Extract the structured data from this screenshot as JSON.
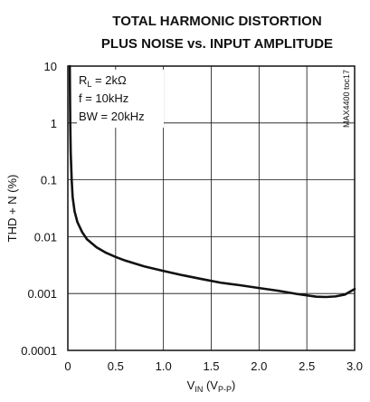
{
  "chart_data": {
    "type": "line",
    "title_line1": "TOTAL HARMONIC DISTORTION",
    "title_line2": "PLUS NOISE vs. INPUT AMPLITUDE",
    "ylabel": "THD + N (%)",
    "xlabel": {
      "base": "V",
      "sub": "IN",
      "rest_open": " (V",
      "rest_sub": "P-P",
      "rest_close": ")"
    },
    "xlim": [
      0,
      3.0
    ],
    "ylim": [
      0.0001,
      10
    ],
    "yscale": "log",
    "grid": true,
    "x_ticks": [
      "0",
      "0.5",
      "1.0",
      "1.5",
      "2.0",
      "2.5",
      "3.0"
    ],
    "x_tick_values": [
      0,
      0.5,
      1.0,
      1.5,
      2.0,
      2.5,
      3.0
    ],
    "y_ticks": [
      "10",
      "1",
      "0.1",
      "0.01",
      "0.001",
      "0.0001"
    ],
    "y_tick_values": [
      10,
      1,
      0.1,
      0.01,
      0.001,
      0.0001
    ],
    "annotation": {
      "rl_base": "R",
      "rl_sub": "L",
      "rl_value": " = 2kΩ",
      "freq": "f = 10kHz",
      "bw": "BW = 20kHz"
    },
    "part_number": "MAX4400 toc17",
    "series": [
      {
        "color": "#111111",
        "x": [
          0.02,
          0.025,
          0.03,
          0.04,
          0.05,
          0.07,
          0.1,
          0.15,
          0.2,
          0.3,
          0.4,
          0.5,
          0.6,
          0.8,
          1.0,
          1.2,
          1.4,
          1.6,
          1.8,
          2.0,
          2.2,
          2.4,
          2.6,
          2.7,
          2.8,
          2.9,
          3.0
        ],
        "y": [
          10,
          1.0,
          0.3,
          0.1,
          0.05,
          0.028,
          0.018,
          0.012,
          0.009,
          0.0065,
          0.0052,
          0.0044,
          0.0038,
          0.003,
          0.0025,
          0.0021,
          0.0018,
          0.00155,
          0.0014,
          0.00125,
          0.00112,
          0.00098,
          0.00088,
          0.00087,
          0.00089,
          0.00096,
          0.0012
        ]
      }
    ]
  }
}
